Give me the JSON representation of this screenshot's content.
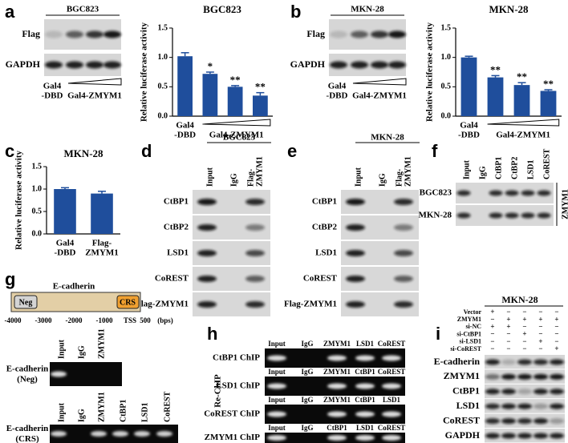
{
  "panel_labels": [
    "a",
    "b",
    "c",
    "d",
    "e",
    "f",
    "g",
    "h",
    "i"
  ],
  "chart_data": [
    {
      "type": "bar",
      "title": "BGC823",
      "y_label": "Relative luciferase activity",
      "categories": [
        [
          "Gal4",
          "-DBD"
        ],
        null,
        null,
        null
      ],
      "group_label": "Gal4-ZMYM1",
      "values": [
        1.02,
        0.72,
        0.5,
        0.35
      ],
      "errors": [
        0.06,
        0.03,
        0.02,
        0.05
      ],
      "significance": [
        null,
        "*",
        "**",
        "**"
      ],
      "color": "#1f4e9c",
      "ylim": [
        0,
        1.5
      ],
      "yticks": [
        {
          "value": 0,
          "label": "0.0"
        },
        0.5,
        {
          "value": 1,
          "label": "1.0"
        },
        1.5
      ]
    },
    {
      "type": "bar",
      "title": "MKN-28",
      "y_label": "Relative luciferase activity",
      "categories": [
        [
          "Gal4",
          "-DBD"
        ],
        null,
        null,
        null
      ],
      "group_label": "Gal4-ZMYM1",
      "values": [
        1.0,
        0.66,
        0.53,
        0.43
      ],
      "errors": [
        0.02,
        0.03,
        0.04,
        0.02
      ],
      "significance": [
        null,
        "**",
        "**",
        "**"
      ],
      "color": "#1f4e9c",
      "ylim": [
        0,
        1.5
      ],
      "yticks": [
        {
          "value": 0,
          "label": "0.0"
        },
        0.5,
        {
          "value": 1,
          "label": "1.0"
        },
        1.5
      ]
    },
    {
      "type": "bar",
      "title": "MKN-28",
      "y_label": "Relative luciferase activity",
      "categories": [
        [
          "Gal4",
          "-DBD"
        ],
        [
          "Flag-",
          "ZMYM1"
        ]
      ],
      "values": [
        1.0,
        0.9
      ],
      "errors": [
        0.03,
        0.05
      ],
      "color": "#1f4e9c",
      "ylim": [
        0,
        1.5
      ],
      "yticks": [
        {
          "value": 0,
          "label": "0.0"
        },
        0.5,
        {
          "value": 1,
          "label": "1.0"
        },
        1.5
      ]
    }
  ],
  "blot_a": {
    "title": "BGC823",
    "rows": [
      "Flag",
      "GAPDH"
    ],
    "lanes": [
      "Gal4",
      "-DBD"
    ],
    "group_label": "Gal4-ZMYM1"
  },
  "blot_b": {
    "title": "MKN-28",
    "rows": [
      "Flag",
      "GAPDH"
    ],
    "lanes": [
      "Gal4",
      "-DBD"
    ],
    "group_label": "Gal4-ZMYM1"
  },
  "blot_d": {
    "title": "BGC823",
    "columns": [
      "Input",
      "IgG",
      [
        "Flag-",
        "ZMYM1"
      ]
    ],
    "rows": [
      "CtBP1",
      "CtBP2",
      "LSD1",
      "CoREST",
      "Flag-ZMYM1"
    ]
  },
  "blot_e": {
    "title": "MKN-28",
    "columns": [
      "Input",
      "IgG",
      [
        "Flag-",
        "ZMYM1"
      ]
    ],
    "rows": [
      "CtBP1",
      "CtBP2",
      "LSD1",
      "CoREST",
      "Flag-ZMYM1"
    ]
  },
  "blot_f": {
    "columns": [
      "Input",
      "IgG",
      "CtBP1",
      "CtBP2",
      "LSD1",
      "CoREST"
    ],
    "rows": [
      "BGC823",
      "MKN-28"
    ],
    "side_label": "ZMYM1"
  },
  "panel_g": {
    "title": "E-cadherin",
    "regions": [
      "Neg",
      "CRS"
    ],
    "axis_labels": [
      "-4000",
      "-3000",
      "-2000",
      "-1000",
      "TSS",
      "500",
      "(bps)"
    ],
    "gels": [
      {
        "label": [
          "E-cadherin",
          "(Neg)"
        ],
        "columns": [
          "Input",
          "IgG",
          "ZMYM1"
        ]
      },
      {
        "label": [
          "E-cadherin",
          "(CRS)"
        ],
        "columns": [
          "Input",
          "IgG",
          "ZMYM1",
          "CtBP1",
          "LSD1",
          "CoREST"
        ]
      }
    ]
  },
  "panel_h": {
    "side_label": "Re-ChIP",
    "rows": [
      {
        "label": "CtBP1 ChIP",
        "columns": [
          "Input",
          "IgG",
          "ZMYM1",
          "LSD1",
          "CoREST"
        ]
      },
      {
        "label": "LSD1 ChIP",
        "columns": [
          "Input",
          "IgG",
          "ZMYM1",
          "CtBP1",
          "CoREST"
        ]
      },
      {
        "label": "CoREST ChIP",
        "columns": [
          "Input",
          "IgG",
          "ZMYM1",
          "CtBP1",
          "LSD1"
        ]
      },
      {
        "label": "ZMYM1 ChIP",
        "columns": [
          "Input",
          "IgG",
          "CtBP1",
          "LSD1",
          "CoREST"
        ]
      }
    ]
  },
  "panel_i": {
    "title": "MKN-28",
    "conditions": [
      {
        "name": "Vector",
        "signs": [
          "+",
          "−",
          "−",
          "−",
          "−"
        ]
      },
      {
        "name": "ZMYM1",
        "signs": [
          "−",
          "+",
          "+",
          "+",
          "+"
        ]
      },
      {
        "name": "si-NC",
        "signs": [
          "+",
          "+",
          "−",
          "−",
          "−"
        ]
      },
      {
        "name": "si-CtBP1",
        "signs": [
          "−",
          "−",
          "+",
          "−",
          "−"
        ]
      },
      {
        "name": "si-LSD1",
        "signs": [
          "−",
          "−",
          "−",
          "+",
          "−"
        ]
      },
      {
        "name": "si-CoREST",
        "signs": [
          "−",
          "−",
          "−",
          "−",
          "+"
        ]
      }
    ],
    "rows": [
      "E-cadherin",
      "ZMYM1",
      "CtBP1",
      "LSD1",
      "CoREST",
      "GAPDH"
    ]
  }
}
